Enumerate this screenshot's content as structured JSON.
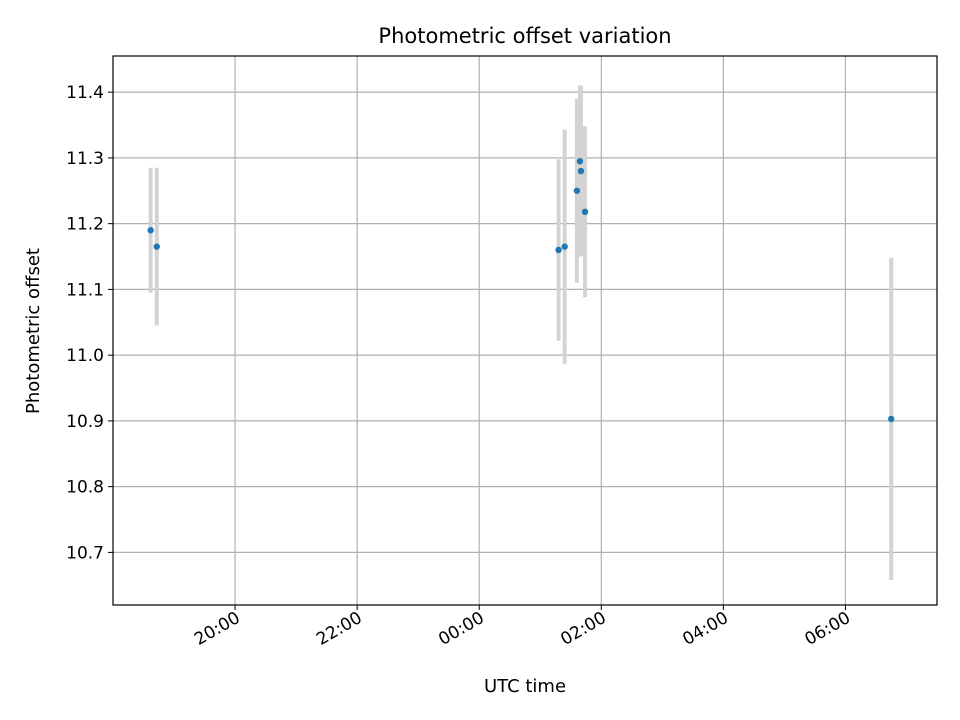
{
  "chart_data": {
    "type": "scatter",
    "title": "Photometric offset variation",
    "xlabel": "UTC time",
    "ylabel": "Photometric offset",
    "grid": true,
    "x_ticks": [
      "20:00",
      "22:00",
      "00:00",
      "02:00",
      "04:00",
      "06:00"
    ],
    "y_ticks": [
      "10.7",
      "10.8",
      "10.9",
      "11.0",
      "11.1",
      "11.2",
      "11.3",
      "11.4"
    ],
    "xlim": [
      "18:00",
      "07:30"
    ],
    "ylim": [
      10.62,
      11.455
    ],
    "series": [
      {
        "color": "#1f77b4",
        "errorbar_color": "#d3d3d3",
        "points": [
          {
            "x": "18:37",
            "y": 11.19,
            "err": 0.095
          },
          {
            "x": "18:43",
            "y": 11.165,
            "err": 0.12
          },
          {
            "x": "01:18",
            "y": 11.16,
            "err": 0.138
          },
          {
            "x": "01:24",
            "y": 11.165,
            "err": 0.178
          },
          {
            "x": "01:36",
            "y": 11.25,
            "err": 0.14
          },
          {
            "x": "01:39",
            "y": 11.295,
            "err": 0.115
          },
          {
            "x": "01:40",
            "y": 11.28,
            "err": 0.13
          },
          {
            "x": "01:44",
            "y": 11.218,
            "err": 0.13
          },
          {
            "x": "06:45",
            "y": 10.903,
            "err": 0.245
          }
        ]
      }
    ]
  }
}
